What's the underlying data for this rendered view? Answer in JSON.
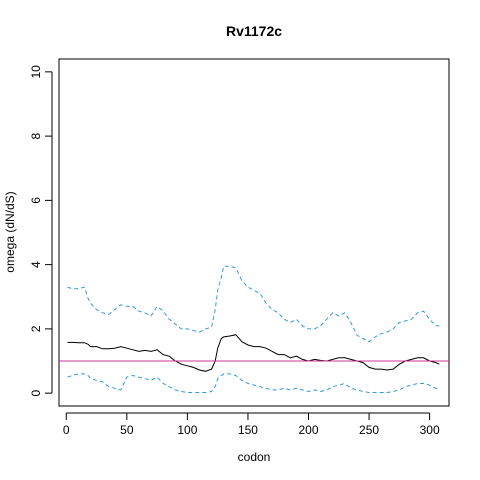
{
  "chart_data": {
    "type": "line",
    "title": "Rv1172c",
    "xlabel": "codon",
    "ylabel": "omega (dN/dS)",
    "xlim": [
      -6,
      316
    ],
    "ylim": [
      -0.4,
      10.4
    ],
    "xticks": [
      0,
      50,
      100,
      150,
      200,
      250,
      300
    ],
    "yticks": [
      0,
      2,
      4,
      6,
      8,
      10
    ],
    "grid": false,
    "reference_line": {
      "y": 1,
      "color": "#cc3399"
    },
    "series": [
      {
        "style": "solid",
        "color": "#000000",
        "x": [
          1,
          5,
          10,
          15,
          18,
          20,
          25,
          30,
          35,
          40,
          45,
          50,
          55,
          60,
          65,
          70,
          75,
          80,
          85,
          90,
          95,
          100,
          105,
          110,
          115,
          120,
          123,
          125,
          128,
          130,
          135,
          140,
          145,
          150,
          155,
          160,
          165,
          170,
          175,
          180,
          185,
          190,
          195,
          200,
          205,
          210,
          215,
          220,
          225,
          230,
          235,
          240,
          245,
          250,
          255,
          260,
          265,
          270,
          275,
          280,
          285,
          290,
          295,
          300,
          305,
          308
        ],
        "y": [
          1.58,
          1.58,
          1.57,
          1.57,
          1.52,
          1.45,
          1.45,
          1.38,
          1.38,
          1.4,
          1.45,
          1.4,
          1.35,
          1.3,
          1.33,
          1.3,
          1.35,
          1.2,
          1.15,
          1.0,
          0.9,
          0.85,
          0.8,
          0.72,
          0.68,
          0.75,
          1.0,
          1.4,
          1.7,
          1.75,
          1.78,
          1.82,
          1.6,
          1.5,
          1.45,
          1.45,
          1.4,
          1.3,
          1.2,
          1.2,
          1.1,
          1.15,
          1.05,
          1.0,
          1.05,
          1.02,
          1.0,
          1.05,
          1.1,
          1.1,
          1.05,
          1.0,
          0.95,
          0.8,
          0.75,
          0.75,
          0.72,
          0.75,
          0.9,
          1.0,
          1.05,
          1.1,
          1.1,
          1.0,
          0.95,
          0.9
        ]
      },
      {
        "style": "dashed",
        "color": "#3399dd",
        "x": [
          1,
          5,
          10,
          15,
          18,
          20,
          25,
          30,
          35,
          40,
          45,
          50,
          55,
          60,
          65,
          70,
          75,
          80,
          85,
          90,
          95,
          100,
          105,
          110,
          115,
          120,
          123,
          125,
          128,
          130,
          135,
          140,
          145,
          150,
          155,
          160,
          165,
          170,
          175,
          180,
          185,
          190,
          195,
          200,
          205,
          210,
          215,
          220,
          225,
          230,
          235,
          240,
          245,
          250,
          255,
          260,
          265,
          270,
          275,
          280,
          285,
          290,
          295,
          300,
          305,
          308
        ],
        "y": [
          3.3,
          3.25,
          3.25,
          3.3,
          2.95,
          2.8,
          2.6,
          2.5,
          2.45,
          2.6,
          2.75,
          2.7,
          2.7,
          2.55,
          2.5,
          2.4,
          2.7,
          2.55,
          2.3,
          2.15,
          2.0,
          2.0,
          1.95,
          1.9,
          2.0,
          2.05,
          2.6,
          3.2,
          3.6,
          3.95,
          3.95,
          3.9,
          3.5,
          3.3,
          3.2,
          3.1,
          2.8,
          2.6,
          2.5,
          2.3,
          2.2,
          2.3,
          2.1,
          2.0,
          2.0,
          2.1,
          2.3,
          2.5,
          2.4,
          2.5,
          2.2,
          1.8,
          1.7,
          1.6,
          1.75,
          1.85,
          1.9,
          2.0,
          2.2,
          2.25,
          2.3,
          2.5,
          2.55,
          2.3,
          2.1,
          2.1
        ]
      },
      {
        "style": "dashed",
        "color": "#3399dd",
        "x": [
          1,
          5,
          10,
          15,
          18,
          20,
          25,
          30,
          35,
          40,
          45,
          50,
          55,
          60,
          65,
          70,
          75,
          80,
          85,
          90,
          95,
          100,
          105,
          110,
          115,
          120,
          123,
          125,
          128,
          130,
          135,
          140,
          145,
          150,
          155,
          160,
          165,
          170,
          175,
          180,
          185,
          190,
          195,
          200,
          205,
          210,
          215,
          220,
          225,
          230,
          235,
          240,
          245,
          250,
          255,
          260,
          265,
          270,
          275,
          280,
          285,
          290,
          295,
          300,
          305,
          308
        ],
        "y": [
          0.5,
          0.55,
          0.6,
          0.6,
          0.55,
          0.45,
          0.4,
          0.35,
          0.2,
          0.15,
          0.1,
          0.5,
          0.55,
          0.5,
          0.45,
          0.4,
          0.5,
          0.3,
          0.2,
          0.1,
          0.05,
          0.02,
          0.02,
          0.02,
          0.02,
          0.05,
          0.2,
          0.45,
          0.55,
          0.6,
          0.6,
          0.55,
          0.4,
          0.3,
          0.25,
          0.2,
          0.15,
          0.1,
          0.1,
          0.15,
          0.1,
          0.15,
          0.1,
          0.05,
          0.1,
          0.05,
          0.1,
          0.2,
          0.25,
          0.3,
          0.15,
          0.1,
          0.05,
          0.02,
          0.02,
          0.02,
          0.02,
          0.05,
          0.1,
          0.2,
          0.25,
          0.3,
          0.3,
          0.25,
          0.15,
          0.12
        ]
      }
    ]
  }
}
